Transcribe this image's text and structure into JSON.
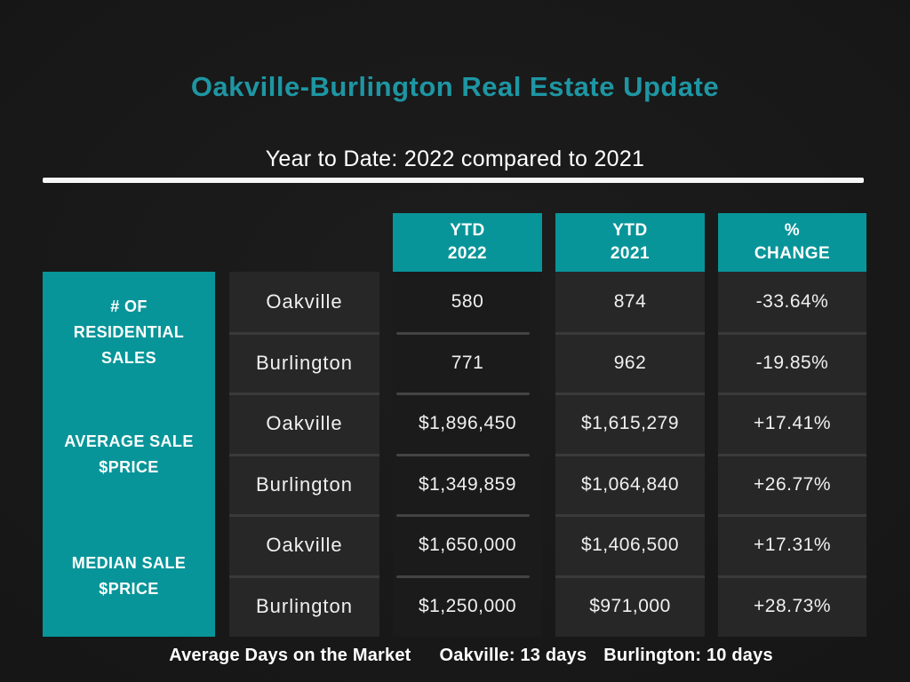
{
  "page": {
    "title": "Oakville-Burlington Real Estate Update",
    "subtitle": "Year to Date: 2022 compared to 2021"
  },
  "colors": {
    "accent_teal": "#089599",
    "title_teal": "#1e96a3",
    "background": "#161616",
    "cell_gray": "#272727",
    "divider_gray": "#3a3a3a",
    "rule_white": "#f7f7f7"
  },
  "table": {
    "column_headers": {
      "ytd_2022": [
        "YTD",
        "2022"
      ],
      "ytd_2021": [
        "YTD",
        "2021"
      ],
      "pct_change": [
        "%",
        "CHANGE"
      ]
    },
    "row_group_labels": {
      "sales": [
        "# OF",
        "RESIDENTIAL",
        "SALES"
      ],
      "average": [
        "AVERAGE SALE",
        "$PRICE"
      ],
      "median": [
        "MEDIAN SALE",
        "$PRICE"
      ]
    },
    "rows": [
      {
        "city": "Oakville",
        "ytd_2022": "580",
        "ytd_2021": "874",
        "pct_change": "-33.64%"
      },
      {
        "city": "Burlington",
        "ytd_2022": "771",
        "ytd_2021": "962",
        "pct_change": "-19.85%"
      },
      {
        "city": "Oakville",
        "ytd_2022": "$1,896,450",
        "ytd_2021": "$1,615,279",
        "pct_change": "+17.41%"
      },
      {
        "city": "Burlington",
        "ytd_2022": "$1,349,859",
        "ytd_2021": "$1,064,840",
        "pct_change": "+26.77%"
      },
      {
        "city": "Oakville",
        "ytd_2022": "$1,650,000",
        "ytd_2021": "$1,406,500",
        "pct_change": "+17.31%"
      },
      {
        "city": "Burlington",
        "ytd_2022": "$1,250,000",
        "ytd_2021": "$971,000",
        "pct_change": "+28.73%"
      }
    ]
  },
  "footer": {
    "label": "Average Days on the Market",
    "oakville": "Oakville: 13 days",
    "burlington": "Burlington: 10 days"
  },
  "chart_data": {
    "type": "table",
    "title": "Oakville-Burlington Real Estate Update",
    "subtitle": "Year to Date: 2022 compared to 2021",
    "columns": [
      "Metric",
      "City",
      "YTD 2022",
      "YTD 2021",
      "% Change"
    ],
    "rows": [
      [
        "# of Residential Sales",
        "Oakville",
        580,
        874,
        -33.64
      ],
      [
        "# of Residential Sales",
        "Burlington",
        771,
        962,
        -19.85
      ],
      [
        "Average Sale $Price",
        "Oakville",
        1896450,
        1615279,
        17.41
      ],
      [
        "Average Sale $Price",
        "Burlington",
        1349859,
        1064840,
        26.77
      ],
      [
        "Median Sale $Price",
        "Oakville",
        1650000,
        1406500,
        17.31
      ],
      [
        "Median Sale $Price",
        "Burlington",
        1250000,
        971000,
        28.73
      ]
    ],
    "notes": "Average Days on the Market — Oakville: 13 days, Burlington: 10 days"
  }
}
